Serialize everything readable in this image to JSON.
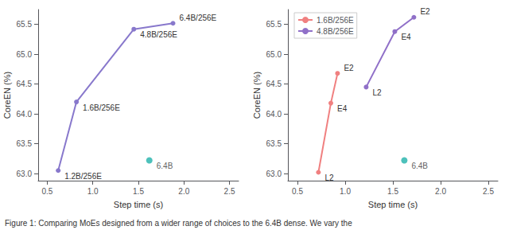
{
  "chart_data": [
    {
      "type": "line",
      "xlabel": "Step time (s)",
      "ylabel": "CoreEN (%)",
      "caption": "Figure 1: Comparing MoEs designed from a wider range of choices to the 6.4B dense. We vary the",
      "xlim": [
        0.4,
        2.6
      ],
      "ylim": [
        62.88,
        65.75
      ],
      "xticks": [
        {
          "value": 0.5,
          "label": "0.5"
        },
        {
          "value": 1.0,
          "label": "1.0"
        },
        {
          "value": 1.5,
          "label": "1.5"
        },
        {
          "value": 2.0,
          "label": "2.0"
        },
        {
          "value": 2.5,
          "label": "2.5"
        }
      ],
      "yticks": [
        {
          "value": 63.0,
          "label": "63.0"
        },
        {
          "value": 63.5,
          "label": "63.5"
        },
        {
          "value": 64.0,
          "label": "64.0"
        },
        {
          "value": 64.5,
          "label": "64.5"
        },
        {
          "value": 65.0,
          "label": "65.0"
        },
        {
          "value": 65.5,
          "label": "65.5"
        }
      ],
      "grid": false,
      "series": [
        {
          "type": "line",
          "color": "#8878CC",
          "marker": "circle",
          "x": [
            0.62,
            0.82,
            1.45,
            1.88
          ],
          "values": [
            63.05,
            64.2,
            65.42,
            65.52
          ],
          "point_labels": [
            "1.2B/256E",
            "1.6B/256E",
            "4.8B/256E",
            "6.4B/256E"
          ]
        },
        {
          "type": "scatter",
          "color": "#20B2AA",
          "marker": "circle",
          "x": [
            1.62
          ],
          "values": [
            63.22
          ],
          "point_labels": [
            "6.4B"
          ]
        }
      ]
    },
    {
      "type": "line",
      "xlabel": "Step time (s)",
      "ylabel": "CoreEN (%)",
      "xlim": [
        0.4,
        2.6
      ],
      "ylim": [
        62.88,
        65.75
      ],
      "xticks": [
        {
          "value": 0.5,
          "label": "0.5"
        },
        {
          "value": 1.0,
          "label": "1.0"
        },
        {
          "value": 1.5,
          "label": "1.5"
        },
        {
          "value": 2.0,
          "label": "2.0"
        },
        {
          "value": 2.5,
          "label": "2.5"
        }
      ],
      "yticks": [
        {
          "value": 63.0,
          "label": "63.0"
        },
        {
          "value": 63.5,
          "label": "63.5"
        },
        {
          "value": 64.0,
          "label": "64.0"
        },
        {
          "value": 64.5,
          "label": "64.5"
        },
        {
          "value": 65.0,
          "label": "65.0"
        },
        {
          "value": 65.5,
          "label": "65.5"
        }
      ],
      "grid": false,
      "legend": "upper left",
      "series": [
        {
          "type": "line",
          "name": "1.6B/256E",
          "color": "#F08080",
          "marker": "circle",
          "x": [
            0.72,
            0.85,
            0.92
          ],
          "values": [
            63.02,
            64.18,
            64.68
          ],
          "point_labels": [
            "L2",
            "E4",
            "E2"
          ]
        },
        {
          "type": "line",
          "name": "4.8B/256E",
          "color": "#9070C8",
          "marker": "circle",
          "x": [
            1.22,
            1.52,
            1.72
          ],
          "values": [
            64.45,
            65.38,
            65.62
          ],
          "point_labels": [
            "L2",
            "E4",
            "E2"
          ]
        },
        {
          "type": "scatter",
          "color": "#20B2AA",
          "marker": "circle",
          "x": [
            1.62
          ],
          "values": [
            63.22
          ],
          "point_labels": [
            "6.4B"
          ]
        }
      ]
    }
  ]
}
